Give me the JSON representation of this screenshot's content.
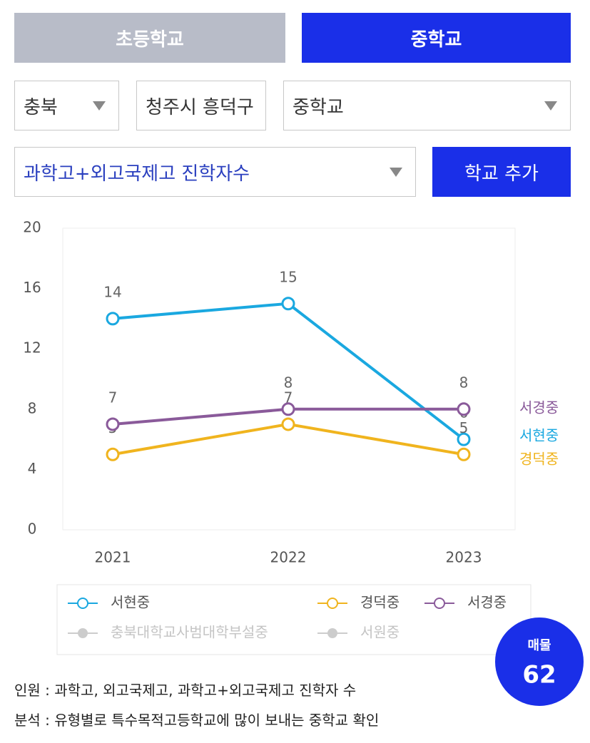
{
  "tabs": [
    "초등학교",
    "중학교"
  ],
  "filters": {
    "region": "충북",
    "district": "청주시 흥덕구",
    "level": "중학교",
    "metric": "과학고+외고국제고 진학자수"
  },
  "add_button": "학교 추가",
  "chart_data": {
    "type": "line",
    "categories": [
      "2021",
      "2022",
      "2023"
    ],
    "series": [
      {
        "name": "서현중",
        "color": "#1aa8e0",
        "values": [
          14,
          15,
          6
        ]
      },
      {
        "name": "경덕중",
        "color": "#f0b41e",
        "values": [
          5,
          7,
          5
        ]
      },
      {
        "name": "서경중",
        "color": "#8a5a9a",
        "values": [
          7,
          8,
          8
        ]
      }
    ],
    "hidden_series": [
      "충북대학교사범대학부설중",
      "서원중"
    ],
    "ylim": [
      0,
      20
    ],
    "yticks": [
      0,
      4,
      8,
      12,
      16,
      20
    ]
  },
  "badge": {
    "label": "매물",
    "value": 62
  },
  "notes": [
    "인원 : 과학고, 외고국제고, 과학고+외고국제고 진학자 수",
    "분석 : 유형별로 특수목적고등학교에 많이 보내는 중학교 확인"
  ]
}
